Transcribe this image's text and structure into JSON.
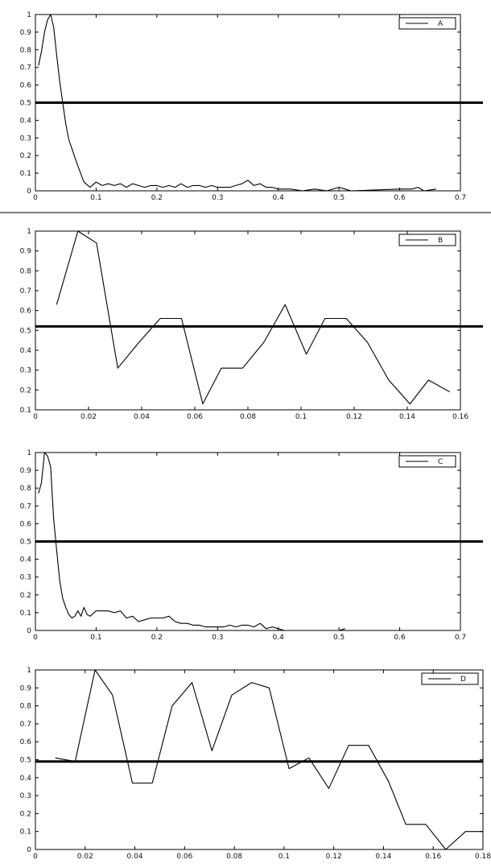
{
  "chart_data": [
    {
      "type": "line",
      "series": [
        {
          "name": "A",
          "x": [
            0.005,
            0.01,
            0.015,
            0.02,
            0.025,
            0.03,
            0.035,
            0.04,
            0.045,
            0.05,
            0.055,
            0.06,
            0.065,
            0.07,
            0.08,
            0.09,
            0.1,
            0.11,
            0.12,
            0.13,
            0.14,
            0.15,
            0.16,
            0.17,
            0.18,
            0.19,
            0.2,
            0.21,
            0.22,
            0.23,
            0.24,
            0.25,
            0.26,
            0.27,
            0.28,
            0.29,
            0.3,
            0.31,
            0.32,
            0.33,
            0.34,
            0.35,
            0.36,
            0.37,
            0.38,
            0.39,
            0.4,
            0.42,
            0.44,
            0.46,
            0.48,
            0.5,
            0.51,
            0.52,
            0.6,
            0.62,
            0.63,
            0.64,
            0.66
          ],
          "y": [
            0.71,
            0.79,
            0.9,
            0.97,
            1.0,
            0.93,
            0.77,
            0.62,
            0.5,
            0.38,
            0.29,
            0.24,
            0.19,
            0.14,
            0.05,
            0.02,
            0.05,
            0.03,
            0.04,
            0.03,
            0.04,
            0.02,
            0.04,
            0.03,
            0.02,
            0.03,
            0.03,
            0.02,
            0.03,
            0.02,
            0.04,
            0.02,
            0.03,
            0.03,
            0.02,
            0.03,
            0.02,
            0.02,
            0.02,
            0.03,
            0.04,
            0.06,
            0.03,
            0.04,
            0.02,
            0.02,
            0.01,
            0.01,
            0.0,
            0.01,
            0.0,
            0.02,
            0.01,
            0.0,
            0.01,
            0.01,
            0.02,
            0.0,
            0.01
          ]
        }
      ],
      "threshold": 0.5,
      "xlim": [
        0,
        0.7
      ],
      "ylim": [
        0,
        1
      ],
      "xticks": [
        0,
        0.1,
        0.2,
        0.3,
        0.4,
        0.5,
        0.6,
        0.7
      ],
      "xtick_labels": [
        "0",
        "0.1",
        "0.2",
        "0.3",
        "0.4",
        "0.5",
        "0.6",
        "0.7"
      ],
      "yticks": [
        0,
        0.1,
        0.2,
        0.3,
        0.4,
        0.5,
        0.6,
        0.7,
        0.8,
        0.9,
        1
      ],
      "ytick_labels": [
        "0",
        "0.1",
        "0.2",
        "0.3",
        "0.4",
        "0.5",
        "0.6",
        "0.7",
        "0.8",
        "0.9",
        "1"
      ],
      "legend": "top-right"
    },
    {
      "type": "line",
      "series": [
        {
          "name": "B",
          "x": [
            0.008,
            0.016,
            0.023,
            0.031,
            0.039,
            0.047,
            0.055,
            0.063,
            0.07,
            0.078,
            0.086,
            0.094,
            0.102,
            0.109,
            0.117,
            0.125,
            0.133,
            0.141,
            0.148,
            0.156
          ],
          "y": [
            0.63,
            1.0,
            0.94,
            0.31,
            0.44,
            0.56,
            0.56,
            0.13,
            0.31,
            0.31,
            0.44,
            0.63,
            0.38,
            0.56,
            0.56,
            0.44,
            0.25,
            0.13,
            0.25,
            0.19
          ]
        }
      ],
      "threshold": 0.52,
      "xlim": [
        0,
        0.16
      ],
      "ylim": [
        0.1,
        1
      ],
      "xticks": [
        0,
        0.02,
        0.04,
        0.06,
        0.08,
        0.1,
        0.12,
        0.14,
        0.16
      ],
      "xtick_labels": [
        "0",
        "0.02",
        "0.04",
        "0.06",
        "0.08",
        "0.1",
        "0.12",
        "0.14",
        "0.16"
      ],
      "yticks": [
        0.1,
        0.2,
        0.3,
        0.4,
        0.5,
        0.6,
        0.7,
        0.8,
        0.9,
        1
      ],
      "ytick_labels": [
        "0.1",
        "0.2",
        "0.3",
        "0.4",
        "0.5",
        "0.6",
        "0.7",
        "0.8",
        "0.9",
        "1"
      ],
      "legend": "top-right"
    },
    {
      "type": "line",
      "series": [
        {
          "name": "C",
          "x": [
            0.005,
            0.01,
            0.015,
            0.02,
            0.025,
            0.03,
            0.035,
            0.04,
            0.045,
            0.05,
            0.055,
            0.06,
            0.065,
            0.07,
            0.075,
            0.08,
            0.085,
            0.09,
            0.1,
            0.11,
            0.12,
            0.13,
            0.14,
            0.15,
            0.16,
            0.17,
            0.18,
            0.19,
            0.2,
            0.21,
            0.22,
            0.23,
            0.24,
            0.25,
            0.26,
            0.27,
            0.28,
            0.29,
            0.3,
            0.31,
            0.32,
            0.33,
            0.34,
            0.35,
            0.36,
            0.37,
            0.38,
            0.39,
            0.4,
            0.41,
            0.5,
            0.51
          ],
          "y": [
            0.77,
            0.83,
            1.0,
            0.98,
            0.92,
            0.63,
            0.45,
            0.28,
            0.18,
            0.13,
            0.09,
            0.07,
            0.08,
            0.11,
            0.08,
            0.13,
            0.09,
            0.08,
            0.11,
            0.11,
            0.11,
            0.1,
            0.11,
            0.07,
            0.08,
            0.05,
            0.06,
            0.07,
            0.07,
            0.07,
            0.08,
            0.05,
            0.04,
            0.04,
            0.03,
            0.03,
            0.02,
            0.02,
            0.02,
            0.02,
            0.03,
            0.02,
            0.03,
            0.03,
            0.02,
            0.04,
            0.01,
            0.02,
            0.01,
            0.0,
            0.0,
            0.01
          ]
        }
      ],
      "threshold": 0.5,
      "xlim": [
        0,
        0.7
      ],
      "ylim": [
        0,
        1
      ],
      "xticks": [
        0,
        0.1,
        0.2,
        0.3,
        0.4,
        0.5,
        0.6,
        0.7
      ],
      "xtick_labels": [
        "0",
        "0.1",
        "0.2",
        "0.3",
        "0.4",
        "0.5",
        "0.6",
        "0.7"
      ],
      "yticks": [
        0,
        0.1,
        0.2,
        0.3,
        0.4,
        0.5,
        0.6,
        0.7,
        0.8,
        0.9,
        1
      ],
      "ytick_labels": [
        "0",
        "0.1",
        "0.2",
        "0.3",
        "0.4",
        "0.5",
        "0.6",
        "0.7",
        "0.8",
        "0.9",
        "1"
      ],
      "legend": "top-right"
    },
    {
      "type": "line",
      "series": [
        {
          "name": "D",
          "x": [
            0.008,
            0.016,
            0.024,
            0.031,
            0.039,
            0.047,
            0.055,
            0.063,
            0.071,
            0.079,
            0.087,
            0.094,
            0.102,
            0.11,
            0.118,
            0.126,
            0.134,
            0.142,
            0.149,
            0.157,
            0.165,
            0.173,
            0.18
          ],
          "y": [
            0.51,
            0.49,
            1.0,
            0.86,
            0.37,
            0.37,
            0.8,
            0.93,
            0.55,
            0.86,
            0.93,
            0.9,
            0.45,
            0.51,
            0.34,
            0.58,
            0.58,
            0.38,
            0.14,
            0.14,
            0.0,
            0.1,
            0.1
          ]
        }
      ],
      "threshold": 0.49,
      "xlim": [
        0,
        0.18
      ],
      "ylim": [
        0,
        1
      ],
      "xticks": [
        0,
        0.02,
        0.04,
        0.06,
        0.08,
        0.1,
        0.12,
        0.14,
        0.16,
        0.18
      ],
      "xtick_labels": [
        "0",
        "0.02",
        "0.04",
        "0.06",
        "0.08",
        "0.1",
        "0.12",
        "0.14",
        "0.16",
        "0.18"
      ],
      "yticks": [
        0,
        0.1,
        0.2,
        0.3,
        0.4,
        0.5,
        0.6,
        0.7,
        0.8,
        0.9,
        1
      ],
      "ytick_labels": [
        "0",
        "0.1",
        "0.2",
        "0.3",
        "0.4",
        "0.5",
        "0.6",
        "0.7",
        "0.8",
        "0.9",
        "1"
      ],
      "legend": "top-right"
    }
  ]
}
